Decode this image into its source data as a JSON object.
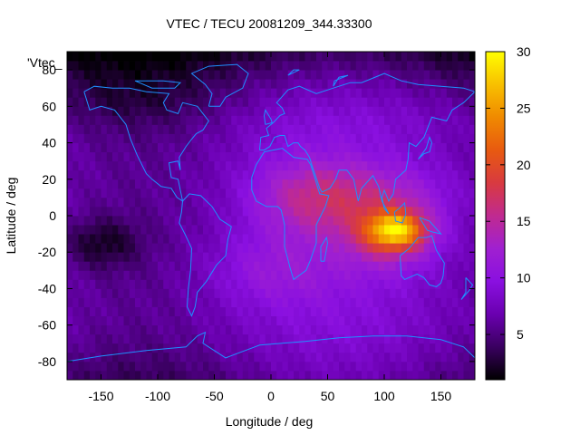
{
  "chart_data": {
    "type": "heatmap",
    "title": "VTEC / TECU 20081209_344.33300",
    "xlabel": "Longitude / deg",
    "ylabel": "Latitude / deg",
    "key_label": "'Vtec_",
    "xlim": [
      -180,
      180
    ],
    "ylim": [
      -90,
      90
    ],
    "xticks": [
      -150,
      -100,
      -50,
      0,
      50,
      100,
      150
    ],
    "yticks": [
      -80,
      -60,
      -40,
      -20,
      0,
      20,
      40,
      60,
      80
    ],
    "colorbar": {
      "min": 1,
      "max": 30,
      "ticks": [
        5,
        10,
        15,
        20,
        25,
        30
      ]
    },
    "colormap": [
      "#000000",
      "#3a0060",
      "#6a00b0",
      "#8a10e0",
      "#a020d0",
      "#c02a90",
      "#d83a40",
      "#e85a10",
      "#f08a00",
      "#f8c000",
      "#ffff00"
    ],
    "coastline_color": "#1e90ff",
    "grid": false,
    "features": [
      {
        "lon": 110,
        "lat": -8,
        "sigma_lon": 18,
        "sigma_lat": 7,
        "amp": 14
      },
      {
        "lon": 105,
        "lat": -12,
        "sigma_lon": 30,
        "sigma_lat": 13,
        "amp": 6
      },
      {
        "lon": 85,
        "lat": 10,
        "sigma_lon": 50,
        "sigma_lat": 13,
        "amp": 5
      },
      {
        "lon": 30,
        "lat": 10,
        "sigma_lon": 35,
        "sigma_lat": 16,
        "amp": 4
      },
      {
        "lon": 0,
        "lat": -30,
        "sigma_lon": 40,
        "sigma_lat": 14,
        "amp": 3
      },
      {
        "lon": -150,
        "lat": -15,
        "sigma_lon": 25,
        "sigma_lat": 10,
        "amp": -4
      },
      {
        "lon": -120,
        "lat": 60,
        "sigma_lon": 60,
        "sigma_lat": 12,
        "amp": -2
      }
    ]
  }
}
